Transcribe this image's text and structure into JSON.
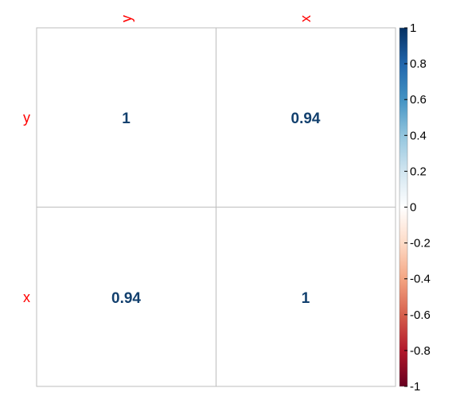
{
  "chart_data": {
    "type": "heatmap",
    "row_labels": [
      "y",
      "x"
    ],
    "col_labels": [
      "y",
      "x"
    ],
    "values": [
      [
        1,
        0.94
      ],
      [
        0.94,
        1
      ]
    ],
    "cell_text": [
      [
        "1",
        "0.94"
      ],
      [
        "0.94",
        "1"
      ]
    ],
    "colorbar": {
      "range": [
        -1,
        1
      ],
      "ticks": [
        "1",
        "0.8",
        "0.6",
        "0.4",
        "0.2",
        "0",
        "-0.2",
        "-0.4",
        "-0.6",
        "-0.8",
        "-1"
      ],
      "tick_values": [
        1,
        0.8,
        0.6,
        0.4,
        0.2,
        0,
        -0.2,
        -0.4,
        -0.6,
        -0.8,
        -1
      ],
      "colors": [
        "#67001F",
        "#B2182B",
        "#D6604D",
        "#F4A582",
        "#FDDBC7",
        "#FFFFFF",
        "#D1E5F0",
        "#92C5DE",
        "#4393C3",
        "#2166AC",
        "#053061"
      ]
    },
    "colors": {
      "label": "#FF0000",
      "value_text": "#12406E",
      "grid": "#BEBEBE"
    }
  }
}
